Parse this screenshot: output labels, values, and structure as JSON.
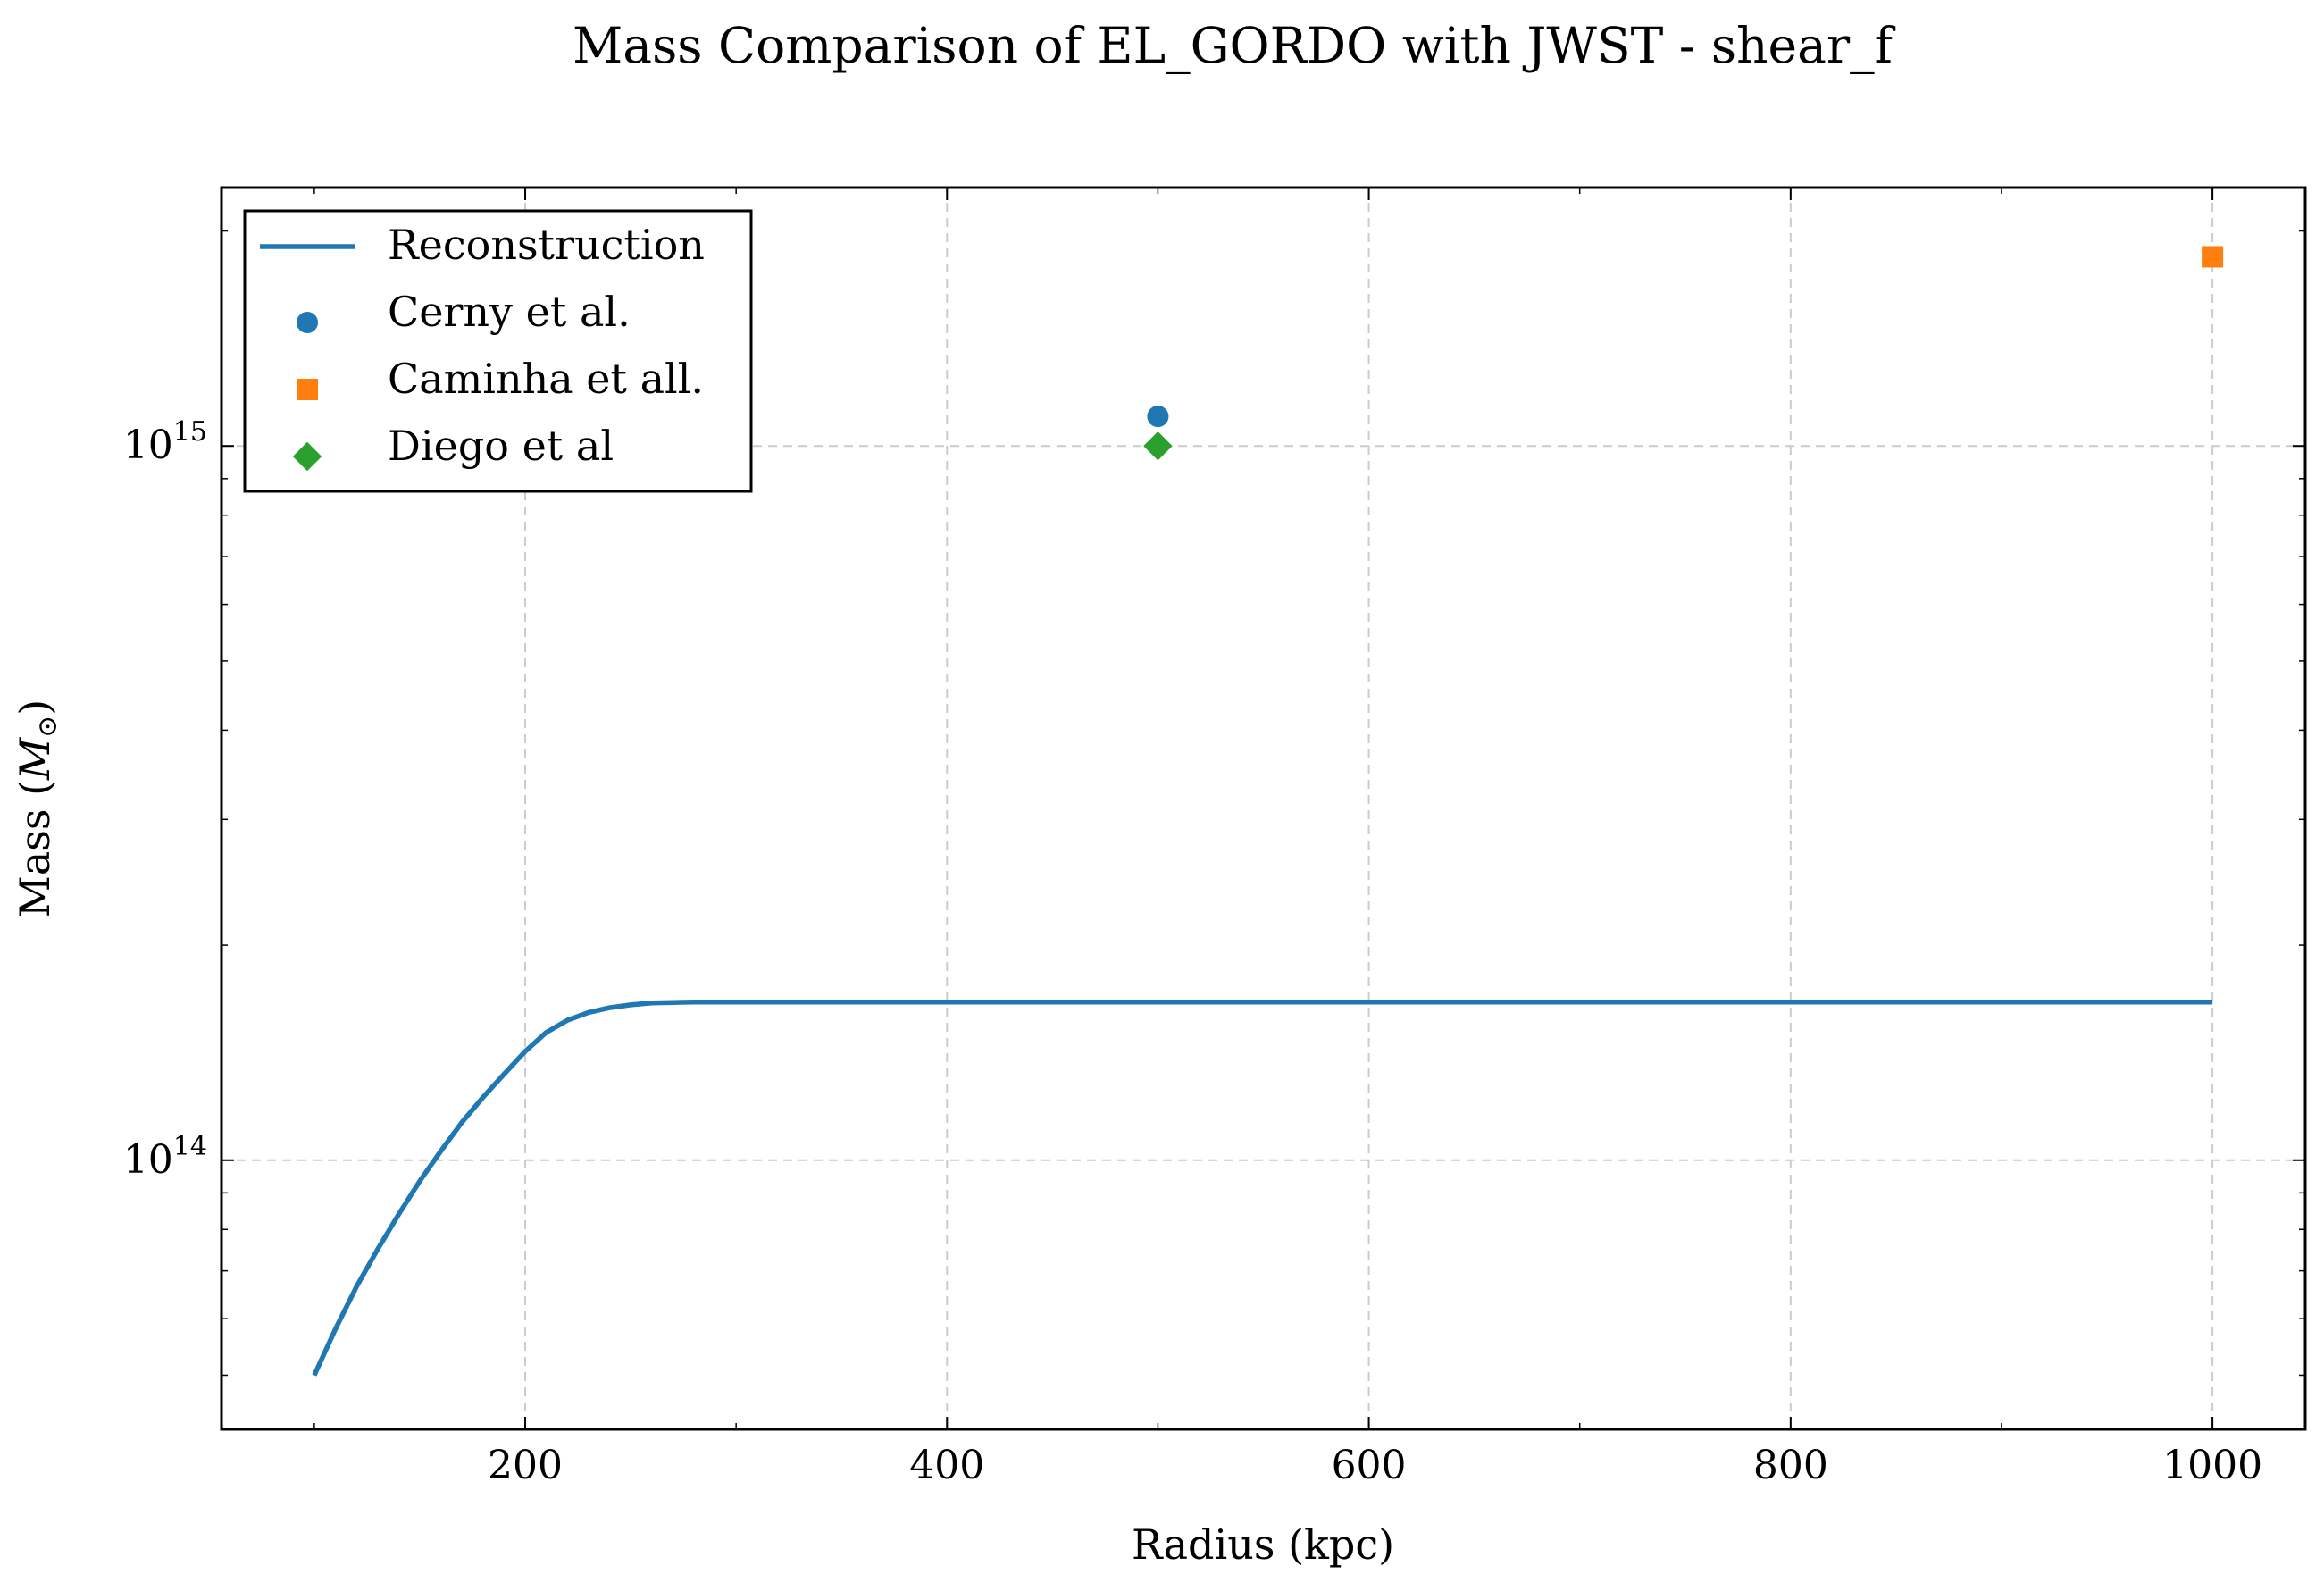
{
  "chart_data": {
    "type": "line",
    "title": "Mass Comparison of EL_GORDO with JWST - shear_f",
    "xlabel": "Radius (kpc)",
    "ylabel_text": "Mass (",
    "ylabel_math": "M",
    "ylabel_sub": "⊙",
    "ylabel_close": ")",
    "xscale": "linear",
    "yscale": "log",
    "xlim": [
      56,
      1044
    ],
    "ylim": [
      42000000000000,
      2300000000000000
    ],
    "grid": true,
    "legend_position": "upper left",
    "x_ticks": [
      {
        "value": 200,
        "label": "200"
      },
      {
        "value": 400,
        "label": "400"
      },
      {
        "value": 600,
        "label": "600"
      },
      {
        "value": 800,
        "label": "800"
      },
      {
        "value": 1000,
        "label": "1000"
      }
    ],
    "y_ticks": [
      {
        "value": 100000000000000,
        "base": "10",
        "exp": "14"
      },
      {
        "value": 1000000000000000,
        "base": "10",
        "exp": "15"
      }
    ],
    "series": [
      {
        "name": "Reconstruction",
        "kind": "line",
        "color": "#1f77b4",
        "x": [
          100,
          110,
          120,
          130,
          140,
          150,
          160,
          170,
          180,
          190,
          200,
          210,
          220,
          230,
          240,
          250,
          260,
          270,
          280,
          300,
          400,
          500,
          600,
          700,
          800,
          900,
          1000
        ],
        "y": [
          50000000000000,
          58000000000000,
          66500000000000,
          75000000000000,
          84000000000000,
          93500000000000,
          103000000000000,
          113000000000000,
          122500000000000,
          132000000000000,
          142000000000000,
          151000000000000,
          157000000000000,
          161000000000000,
          163500000000000,
          165000000000000,
          166000000000000,
          166300000000000,
          166500000000000,
          166500000000000,
          166500000000000,
          166500000000000,
          166500000000000,
          166500000000000,
          166500000000000,
          166500000000000,
          166500000000000
        ]
      },
      {
        "name": "Cerny et al.",
        "kind": "marker",
        "marker": "circle",
        "color": "#1f77b4",
        "x": [
          500
        ],
        "y": [
          1100000000000000
        ]
      },
      {
        "name": "Caminha et all.",
        "kind": "marker",
        "marker": "square",
        "color": "#ff7f0e",
        "x": [
          1000
        ],
        "y": [
          1840000000000000
        ]
      },
      {
        "name": "Diego et al",
        "kind": "marker",
        "marker": "diamond",
        "color": "#2ca02c",
        "x": [
          500
        ],
        "y": [
          1000000000000000
        ]
      }
    ]
  }
}
